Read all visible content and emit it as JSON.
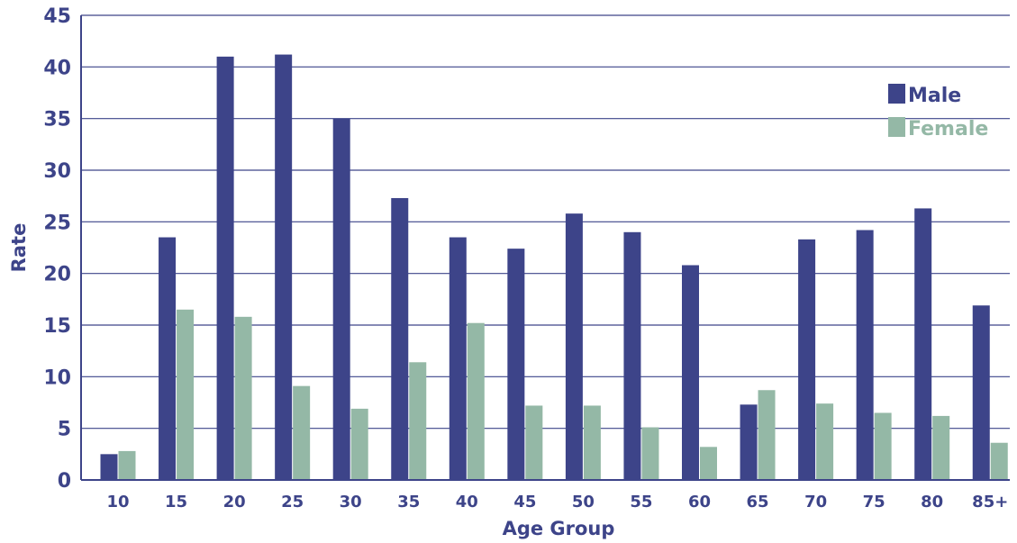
{
  "chart_data": {
    "type": "bar",
    "title": "",
    "xlabel": "Age Group",
    "ylabel": "Rate",
    "ylim": [
      0,
      45
    ],
    "yticks": [
      "0",
      "5",
      "10",
      "15",
      "20",
      "25",
      "30",
      "35",
      "40",
      "45"
    ],
    "categories": [
      "10",
      "15",
      "20",
      "25",
      "30",
      "35",
      "40",
      "45",
      "50",
      "55",
      "60",
      "65",
      "70",
      "75",
      "80",
      "85+"
    ],
    "series": [
      {
        "name": "Male",
        "color": "#3d4489",
        "values": [
          2.5,
          23.5,
          41.0,
          41.2,
          35.0,
          27.3,
          23.5,
          22.4,
          25.8,
          24.0,
          20.8,
          7.3,
          23.3,
          24.2,
          26.3,
          16.9
        ]
      },
      {
        "name": "Female",
        "color": "#94b8a6",
        "values": [
          2.8,
          16.5,
          15.8,
          9.1,
          6.9,
          11.4,
          15.2,
          7.2,
          7.2,
          5.1,
          3.2,
          8.7,
          7.4,
          6.5,
          6.2,
          3.6
        ]
      }
    ],
    "legend_position": "top-right",
    "grid": "horizontal"
  }
}
